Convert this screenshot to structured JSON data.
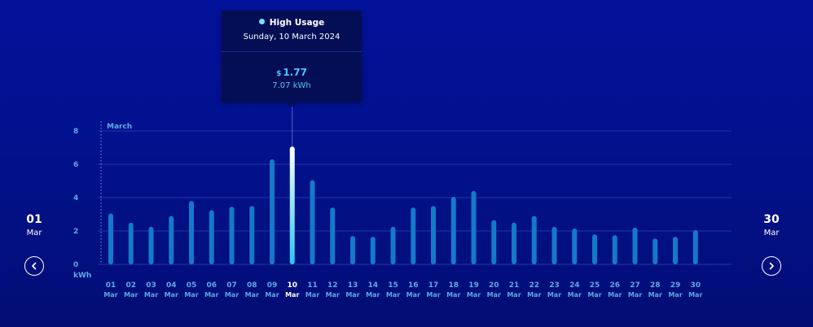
{
  "range": {
    "start_day": "01",
    "start_month": "Mar",
    "end_day": "30",
    "end_month": "Mar"
  },
  "nav": {
    "prev_icon": "chevron-left-icon",
    "next_icon": "chevron-right-icon"
  },
  "tooltip": {
    "series": "High Usage",
    "date": "Sunday, 10 March 2024",
    "currency": "$",
    "cost": "1.77",
    "usage": "7.07 kWh"
  },
  "chart_data": {
    "type": "bar",
    "month_marker": "March",
    "y_unit": "kWh",
    "ylim": [
      0,
      8
    ],
    "yticks": [
      0,
      2,
      4,
      6,
      8
    ],
    "grid": true,
    "categories": [
      "01",
      "02",
      "03",
      "04",
      "05",
      "06",
      "07",
      "08",
      "09",
      "10",
      "11",
      "12",
      "13",
      "14",
      "15",
      "16",
      "17",
      "18",
      "19",
      "20",
      "21",
      "22",
      "23",
      "24",
      "25",
      "26",
      "27",
      "28",
      "29",
      "30"
    ],
    "category_month": "Mar",
    "values": [
      3.05,
      2.5,
      2.25,
      2.9,
      3.8,
      3.25,
      3.45,
      3.5,
      6.3,
      7.07,
      5.05,
      3.4,
      1.7,
      1.65,
      2.25,
      3.4,
      3.5,
      4.05,
      4.4,
      2.65,
      2.5,
      2.9,
      2.25,
      2.15,
      1.8,
      1.75,
      2.2,
      1.55,
      1.65,
      2.05
    ],
    "highlight_index": 9,
    "colors": {
      "bar": "#1579c9",
      "highlight_top": "#ffffff",
      "highlight_bottom": "#29c6f2",
      "grid": "#1d38a8"
    }
  }
}
